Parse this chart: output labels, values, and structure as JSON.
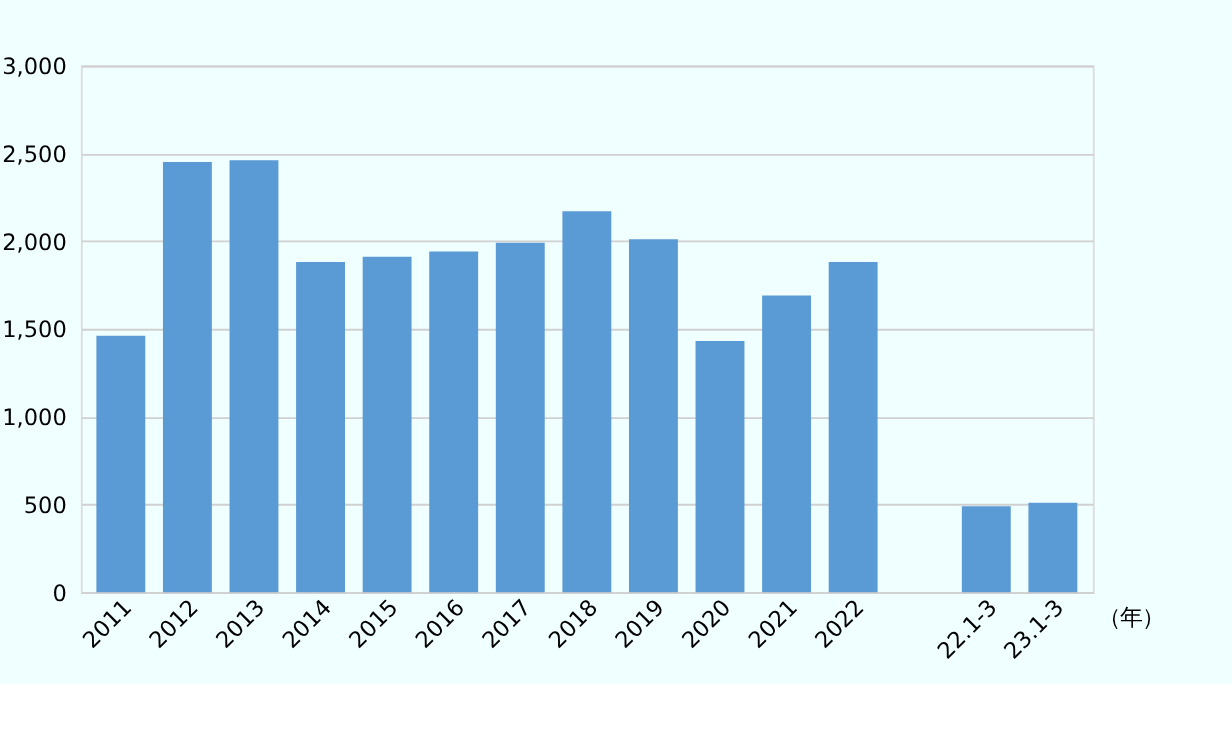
{
  "chart_data": {
    "type": "bar",
    "xlabel": "（年）",
    "categories": [
      "2011",
      "2012",
      "2013",
      "2014",
      "2015",
      "2016",
      "2017",
      "2018",
      "2019",
      "2020",
      "2021",
      "2022",
      null,
      "22.1-3",
      "23.1-3"
    ],
    "values": [
      1460,
      2450,
      2460,
      1880,
      1910,
      1940,
      1990,
      2170,
      2010,
      1430,
      1690,
      1880,
      null,
      490,
      510
    ],
    "color": "#5b9bd5",
    "ylim": [
      0,
      3000
    ],
    "yticks": [
      0,
      500,
      {
        "value": 1000,
        "label": "1,000"
      },
      {
        "value": 1500,
        "label": "1,500"
      },
      {
        "value": 2000,
        "label": "2,000"
      },
      {
        "value": 2500,
        "label": "2,500"
      },
      {
        "value": 3000,
        "label": "3,000"
      }
    ],
    "grid": "y"
  }
}
